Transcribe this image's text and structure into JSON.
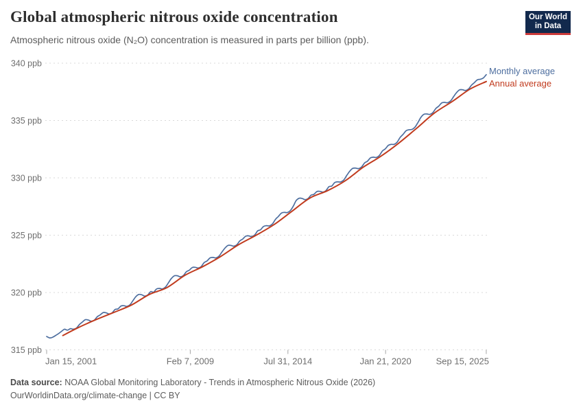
{
  "header": {
    "title": "Global atmospheric nitrous oxide concentration",
    "subtitle": "Atmospheric nitrous oxide (N₂O) concentration is measured in parts per billion (ppb).",
    "logo": {
      "line1": "Our World",
      "line2": "in Data",
      "bg_color": "#12294d",
      "accent_color": "#cc3a3a"
    }
  },
  "footer": {
    "source_label": "Data source:",
    "source_text": " NOAA Global Monitoring Laboratory - Trends in Atmospheric Nitrous Oxide (2026)",
    "attribution": "OurWorldinData.org/climate-change | CC BY"
  },
  "chart_data": {
    "type": "line",
    "title": "Global atmospheric nitrous oxide concentration",
    "xlabel": "",
    "ylabel": "",
    "unit": "ppb",
    "grid": "dashed-horizontal",
    "legend_position": "right-of-line-ends",
    "colors": {
      "grid": "#d9d9d9",
      "tick": "#a5a5a5",
      "axis_text": "#6e6e6e"
    },
    "x_axis": {
      "domain": [
        2001.04,
        2025.75
      ],
      "ticks": [
        {
          "t": 2001.04,
          "label": "Jan 15, 2001",
          "align": "start"
        },
        {
          "t": 2009.1,
          "label": "Feb 7, 2009",
          "align": "middle"
        },
        {
          "t": 2014.58,
          "label": "Jul 31, 2014",
          "align": "middle"
        },
        {
          "t": 2020.06,
          "label": "Jan 21, 2020",
          "align": "middle"
        },
        {
          "t": 2025.71,
          "label": "Sep 15, 2025",
          "align": "end"
        }
      ]
    },
    "y_axis": {
      "domain": [
        315,
        340
      ],
      "ticks": [
        315,
        320,
        325,
        330,
        335,
        340
      ],
      "tick_suffix": " ppb"
    },
    "series": [
      {
        "name": "Monthly average",
        "color": "#4d6e9f",
        "width": 1.7,
        "points": [
          [
            2001.04,
            316.17
          ],
          [
            2001.21,
            316.04
          ],
          [
            2001.38,
            316.1
          ],
          [
            2001.54,
            316.25
          ],
          [
            2001.71,
            316.42
          ],
          [
            2001.88,
            316.62
          ],
          [
            2002.04,
            316.8
          ],
          [
            2002.21,
            316.72
          ],
          [
            2002.38,
            316.85
          ],
          [
            2002.54,
            316.8
          ],
          [
            2002.71,
            316.9
          ],
          [
            2002.88,
            317.21
          ],
          [
            2003.04,
            317.42
          ],
          [
            2003.21,
            317.63
          ],
          [
            2003.38,
            317.6
          ],
          [
            2003.54,
            317.5
          ],
          [
            2003.71,
            317.58
          ],
          [
            2003.88,
            317.89
          ],
          [
            2004.04,
            318.04
          ],
          [
            2004.21,
            318.25
          ],
          [
            2004.38,
            318.23
          ],
          [
            2004.54,
            318.13
          ],
          [
            2004.71,
            318.22
          ],
          [
            2004.88,
            318.52
          ],
          [
            2005.04,
            318.57
          ],
          [
            2005.21,
            318.82
          ],
          [
            2005.38,
            318.85
          ],
          [
            2005.54,
            318.79
          ],
          [
            2005.71,
            318.92
          ],
          [
            2005.88,
            319.28
          ],
          [
            2006.04,
            319.63
          ],
          [
            2006.21,
            319.83
          ],
          [
            2006.38,
            319.8
          ],
          [
            2006.54,
            319.69
          ],
          [
            2006.71,
            319.78
          ],
          [
            2006.88,
            320.08
          ],
          [
            2007.04,
            320.03
          ],
          [
            2007.21,
            320.31
          ],
          [
            2007.38,
            320.36
          ],
          [
            2007.54,
            320.32
          ],
          [
            2007.71,
            320.48
          ],
          [
            2007.88,
            320.86
          ],
          [
            2008.04,
            321.23
          ],
          [
            2008.21,
            321.46
          ],
          [
            2008.38,
            321.46
          ],
          [
            2008.54,
            321.37
          ],
          [
            2008.71,
            321.48
          ],
          [
            2008.88,
            321.81
          ],
          [
            2009.04,
            321.94
          ],
          [
            2009.21,
            322.18
          ],
          [
            2009.38,
            322.2
          ],
          [
            2009.54,
            322.14
          ],
          [
            2009.71,
            322.26
          ],
          [
            2009.88,
            322.61
          ],
          [
            2010.04,
            322.75
          ],
          [
            2010.21,
            323.02
          ],
          [
            2010.38,
            323.06
          ],
          [
            2010.54,
            323.02
          ],
          [
            2010.71,
            323.17
          ],
          [
            2010.88,
            323.54
          ],
          [
            2011.04,
            323.86
          ],
          [
            2011.21,
            324.1
          ],
          [
            2011.38,
            324.11
          ],
          [
            2011.54,
            324.04
          ],
          [
            2011.71,
            324.16
          ],
          [
            2011.88,
            324.5
          ],
          [
            2012.04,
            324.66
          ],
          [
            2012.21,
            324.91
          ],
          [
            2012.38,
            324.94
          ],
          [
            2012.54,
            324.88
          ],
          [
            2012.71,
            325.01
          ],
          [
            2012.88,
            325.37
          ],
          [
            2013.04,
            325.47
          ],
          [
            2013.21,
            325.76
          ],
          [
            2013.38,
            325.83
          ],
          [
            2013.54,
            325.81
          ],
          [
            2013.71,
            325.98
          ],
          [
            2013.88,
            326.38
          ],
          [
            2014.04,
            326.63
          ],
          [
            2014.21,
            326.92
          ],
          [
            2014.38,
            326.99
          ],
          [
            2014.54,
            326.97
          ],
          [
            2014.71,
            327.14
          ],
          [
            2014.88,
            327.53
          ],
          [
            2015.04,
            328.01
          ],
          [
            2015.21,
            328.22
          ],
          [
            2015.38,
            328.2
          ],
          [
            2015.54,
            328.1
          ],
          [
            2015.71,
            328.19
          ],
          [
            2015.88,
            328.49
          ],
          [
            2016.04,
            328.56
          ],
          [
            2016.21,
            328.81
          ],
          [
            2016.38,
            328.82
          ],
          [
            2016.54,
            328.76
          ],
          [
            2016.71,
            328.88
          ],
          [
            2016.88,
            329.23
          ],
          [
            2017.04,
            329.29
          ],
          [
            2017.21,
            329.59
          ],
          [
            2017.38,
            329.65
          ],
          [
            2017.54,
            329.64
          ],
          [
            2017.71,
            329.81
          ],
          [
            2017.88,
            330.21
          ],
          [
            2018.04,
            330.56
          ],
          [
            2018.21,
            330.82
          ],
          [
            2018.38,
            330.85
          ],
          [
            2018.54,
            330.8
          ],
          [
            2018.71,
            330.94
          ],
          [
            2018.88,
            331.3
          ],
          [
            2019.04,
            331.45
          ],
          [
            2019.21,
            331.74
          ],
          [
            2019.38,
            331.8
          ],
          [
            2019.54,
            331.78
          ],
          [
            2019.71,
            331.95
          ],
          [
            2019.88,
            332.34
          ],
          [
            2020.04,
            332.52
          ],
          [
            2020.21,
            332.83
          ],
          [
            2020.38,
            332.92
          ],
          [
            2020.54,
            332.92
          ],
          [
            2020.71,
            333.12
          ],
          [
            2020.88,
            333.53
          ],
          [
            2021.04,
            333.79
          ],
          [
            2021.21,
            334.11
          ],
          [
            2021.38,
            334.2
          ],
          [
            2021.54,
            334.22
          ],
          [
            2021.71,
            334.42
          ],
          [
            2021.88,
            334.84
          ],
          [
            2022.04,
            335.27
          ],
          [
            2022.21,
            335.54
          ],
          [
            2022.38,
            335.57
          ],
          [
            2022.54,
            335.53
          ],
          [
            2022.71,
            335.68
          ],
          [
            2022.88,
            336.05
          ],
          [
            2023.04,
            336.25
          ],
          [
            2023.21,
            336.53
          ],
          [
            2023.38,
            336.58
          ],
          [
            2023.54,
            336.55
          ],
          [
            2023.71,
            336.71
          ],
          [
            2023.88,
            337.09
          ],
          [
            2024.04,
            337.43
          ],
          [
            2024.21,
            337.67
          ],
          [
            2024.38,
            337.68
          ],
          [
            2024.54,
            337.62
          ],
          [
            2024.71,
            337.74
          ],
          [
            2024.88,
            338.08
          ],
          [
            2025.04,
            338.3
          ],
          [
            2025.21,
            338.55
          ],
          [
            2025.38,
            338.6
          ],
          [
            2025.54,
            338.7
          ],
          [
            2025.71,
            339.0
          ]
        ]
      },
      {
        "name": "Annual average",
        "color": "#c13b1e",
        "width": 2,
        "points": [
          [
            2001.95,
            316.25
          ],
          [
            2002.8,
            316.93
          ],
          [
            2003.8,
            317.63
          ],
          [
            2004.8,
            318.26
          ],
          [
            2005.8,
            318.91
          ],
          [
            2006.8,
            319.83
          ],
          [
            2007.8,
            320.44
          ],
          [
            2008.8,
            321.5
          ],
          [
            2009.8,
            322.26
          ],
          [
            2010.8,
            323.14
          ],
          [
            2011.8,
            324.16
          ],
          [
            2012.8,
            325.0
          ],
          [
            2013.8,
            325.92
          ],
          [
            2014.8,
            327.08
          ],
          [
            2015.8,
            328.23
          ],
          [
            2016.8,
            328.88
          ],
          [
            2017.8,
            329.75
          ],
          [
            2018.8,
            330.92
          ],
          [
            2019.8,
            331.89
          ],
          [
            2020.8,
            333.03
          ],
          [
            2021.8,
            334.32
          ],
          [
            2022.8,
            335.65
          ],
          [
            2023.8,
            336.66
          ],
          [
            2024.8,
            337.74
          ],
          [
            2025.71,
            338.4
          ]
        ]
      }
    ]
  }
}
